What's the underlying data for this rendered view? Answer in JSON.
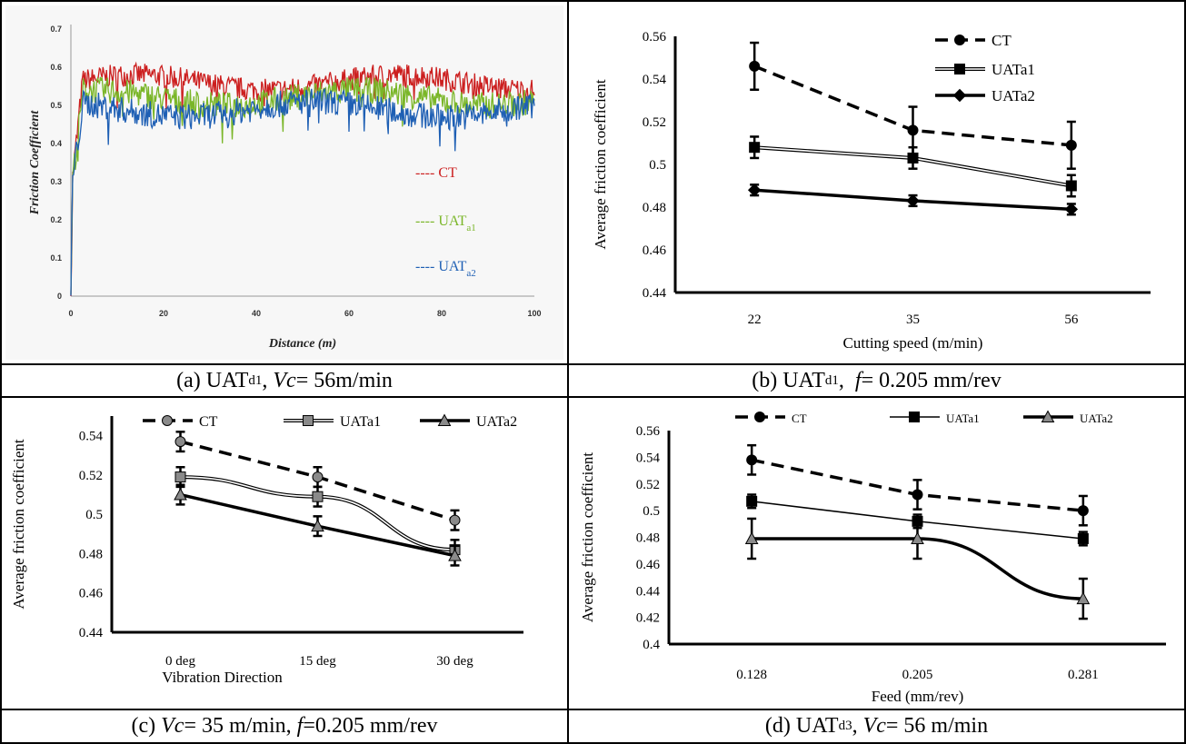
{
  "captions": {
    "a": {
      "prefix": "(a) UAT",
      "sub": "d1",
      "mid": ", ",
      "italic": "Vc",
      "suffix": "= 56m/min"
    },
    "b": {
      "prefix": "(b) UAT",
      "sub": "d1",
      "mid": ",  ",
      "italic": "f",
      "suffix": "= 0.205 mm/rev"
    },
    "c": {
      "prefix": "(c) ",
      "italic": "Vc",
      "mid": "= 35 m/min, ",
      "italic2": "f",
      "suffix": "=0.205 mm/rev"
    },
    "d": {
      "prefix": "(d) UAT",
      "sub": "d3",
      "mid": ", ",
      "italic": "Vc",
      "suffix": "= 56 m/min"
    }
  },
  "colors": {
    "ct_a": "#cc1f1f",
    "uata1_a": "#7ab628",
    "uata2_a": "#1e5fb4",
    "line": "#000000",
    "marker_grey": "#8a8a8a"
  },
  "chart_data": [
    {
      "id": "a",
      "type": "line",
      "title": "",
      "xlabel": "Distance (m)",
      "ylabel": "Friction Coefficient",
      "xlim": [
        0,
        100
      ],
      "ylim": [
        0,
        0.7
      ],
      "xticks": [
        "0",
        "20",
        "40",
        "60",
        "80",
        "100"
      ],
      "yticks": [
        "0",
        "0.1",
        "0.2",
        "0.3",
        "0.4",
        "0.5",
        "0.6",
        "0.7"
      ],
      "series": [
        {
          "name": "CT",
          "legend": "---- CT",
          "level": 0.56,
          "noise": 0.03,
          "color_key": "ct_a"
        },
        {
          "name": "UATa1",
          "legend": "---- UAT",
          "legend_sub": "a1",
          "level": 0.52,
          "noise": 0.035,
          "color_key": "uata1_a"
        },
        {
          "name": "UATa2",
          "legend": "---- UAT",
          "legend_sub": "a2",
          "level": 0.49,
          "noise": 0.035,
          "color_key": "uata2_a"
        }
      ]
    },
    {
      "id": "b",
      "type": "line",
      "title": "",
      "xlabel": "Cutting speed (m/min)",
      "ylabel": "Average friction coefficient",
      "categories": [
        "22",
        "35",
        "56"
      ],
      "ylim": [
        0.44,
        0.56
      ],
      "yticks": [
        "0.44",
        "0.46",
        "0.48",
        "0.5",
        "0.52",
        "0.54",
        "0.56"
      ],
      "series": [
        {
          "name": "CT",
          "values": [
            0.546,
            0.516,
            0.509
          ],
          "err": [
            0.011,
            0.011,
            0.011
          ],
          "marker": "circle",
          "style": "dashed"
        },
        {
          "name": "UATa1",
          "values": [
            0.508,
            0.503,
            0.49
          ],
          "err": [
            0.005,
            0.005,
            0.005
          ],
          "marker": "square",
          "style": "double"
        },
        {
          "name": "UATa2",
          "values": [
            0.488,
            0.483,
            0.479
          ],
          "err": [
            0.0025,
            0.0025,
            0.0025
          ],
          "marker": "diamond",
          "style": "solid"
        }
      ]
    },
    {
      "id": "c",
      "type": "line",
      "title": "",
      "xlabel": "Vibration Direction",
      "ylabel": "Average friction coefficient",
      "categories": [
        "0 deg",
        "15 deg",
        "30 deg"
      ],
      "ylim": [
        0.44,
        0.55
      ],
      "yticks": [
        "0.44",
        "0.46",
        "0.48",
        "0.5",
        "0.52",
        "0.54"
      ],
      "series": [
        {
          "name": "CT",
          "values": [
            0.537,
            0.519,
            0.497
          ],
          "err": [
            0.005,
            0.005,
            0.005
          ],
          "marker": "circle",
          "style": "dashed"
        },
        {
          "name": "UATa1",
          "values": [
            0.519,
            0.509,
            0.482
          ],
          "err": [
            0.005,
            0.005,
            0.005
          ],
          "marker": "square",
          "style": "double"
        },
        {
          "name": "UATa2",
          "values": [
            0.51,
            0.494,
            0.479
          ],
          "err": [
            0.005,
            0.005,
            0.005
          ],
          "marker": "triangle",
          "style": "solid"
        }
      ]
    },
    {
      "id": "d",
      "type": "line",
      "title": "",
      "xlabel": "Feed (mm/rev)",
      "ylabel": "Average friction coefficient",
      "categories": [
        "0.128",
        "0.205",
        "0.281"
      ],
      "ylim": [
        0.4,
        0.56
      ],
      "yticks": [
        "0.4",
        "0.42",
        "0.44",
        "0.46",
        "0.48",
        "0.5",
        "0.52",
        "0.54",
        "0.56"
      ],
      "series": [
        {
          "name": "CT",
          "values": [
            0.538,
            0.512,
            0.5
          ],
          "err": [
            0.011,
            0.011,
            0.011
          ],
          "marker": "circle",
          "style": "dashed"
        },
        {
          "name": "UATa1",
          "values": [
            0.507,
            0.492,
            0.479
          ],
          "err": [
            0.005,
            0.005,
            0.005
          ],
          "marker": "square",
          "style": "thin"
        },
        {
          "name": "UATa2",
          "values": [
            0.479,
            0.479,
            0.434
          ],
          "err": [
            0.015,
            0.015,
            0.015
          ],
          "marker": "triangle",
          "style": "solid"
        }
      ]
    }
  ]
}
